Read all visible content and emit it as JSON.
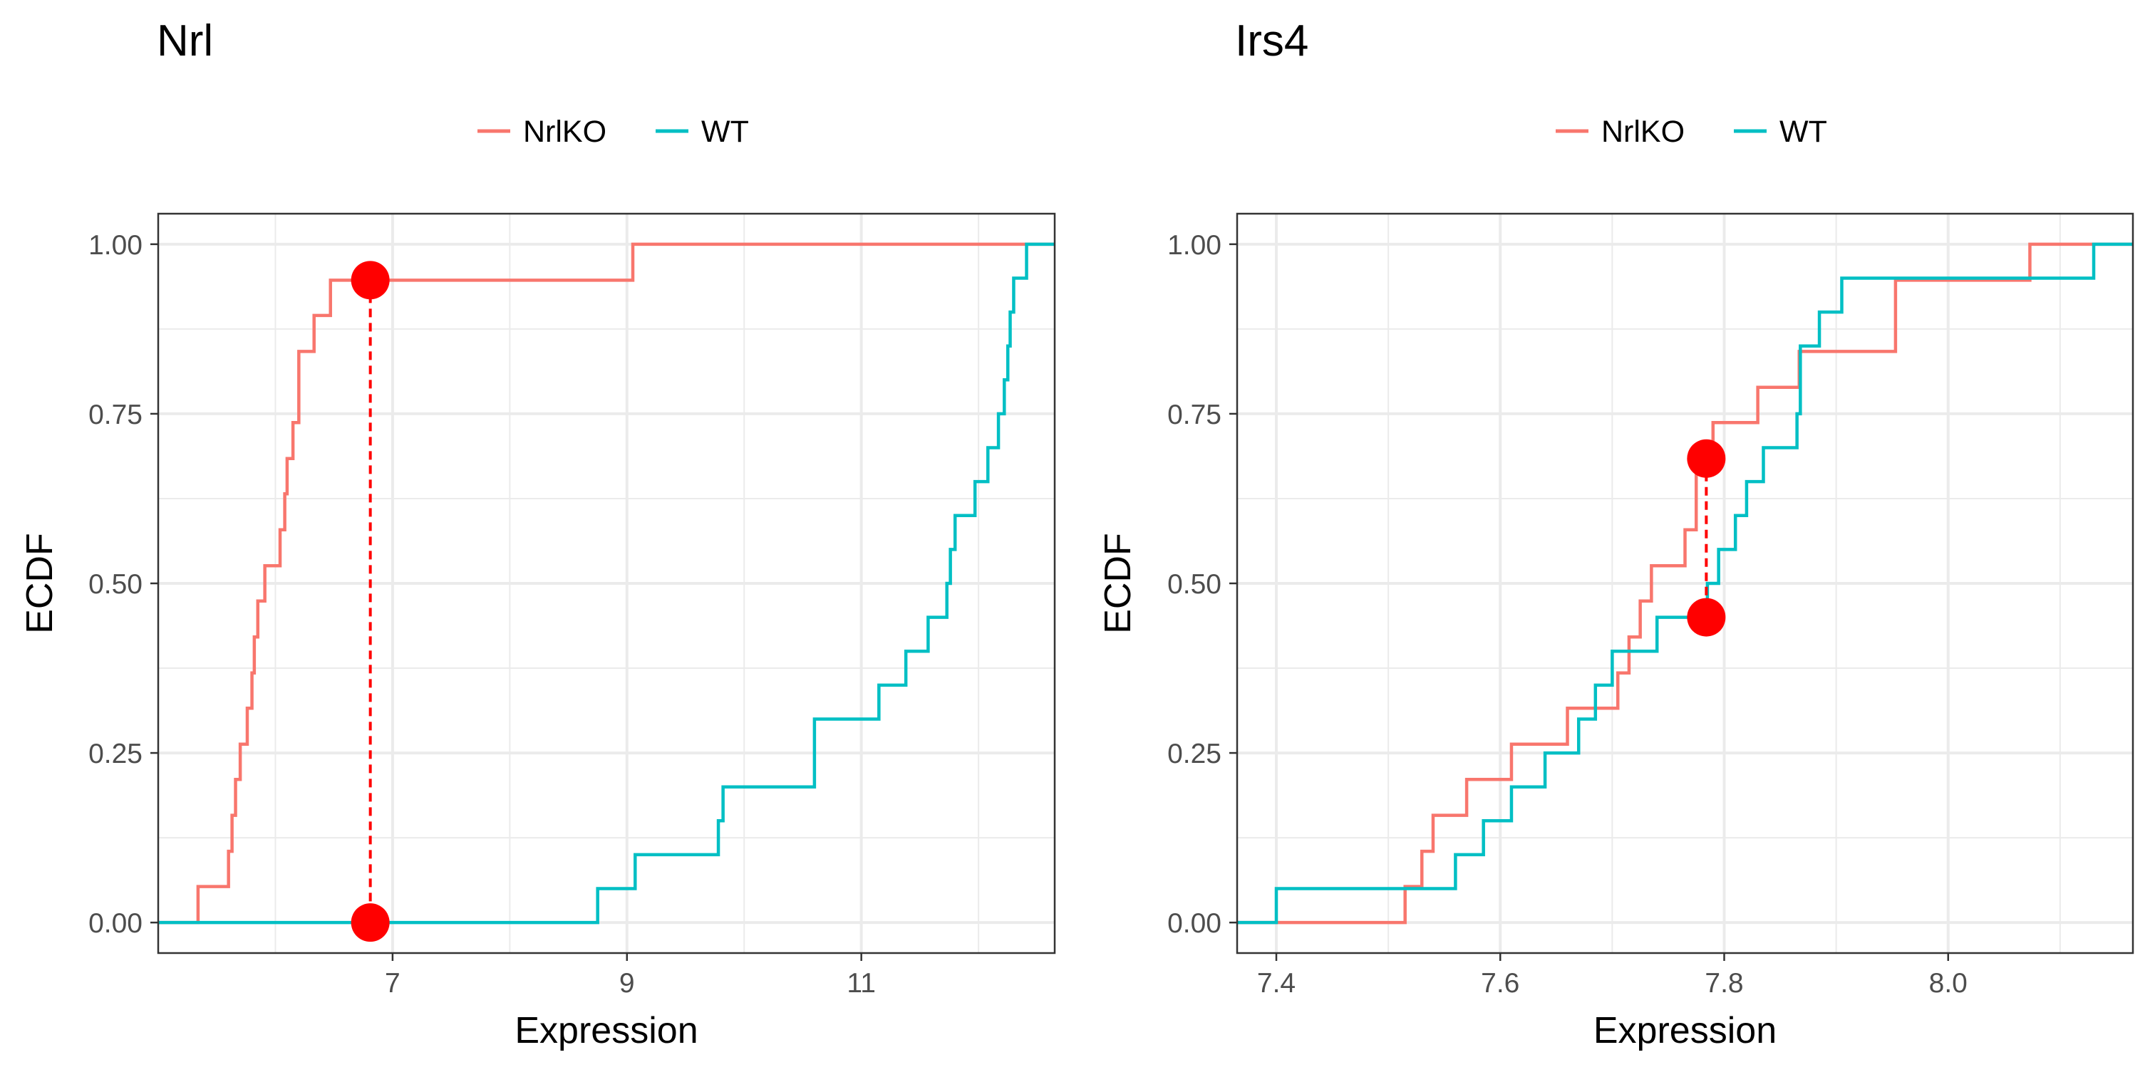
{
  "colors": {
    "NrlKO": "#F8766D",
    "WT": "#00BFC4",
    "marker": "#FF0000",
    "grid": "#EBEBEB",
    "panel_border": "#333333",
    "tick_text": "#4D4D4D",
    "title_text": "#000000"
  },
  "chart_data": [
    {
      "type": "line",
      "step": true,
      "title": "Nrl",
      "xlabel": "Expression",
      "ylabel": "ECDF",
      "xlim": [
        5.0,
        12.65
      ],
      "ylim": [
        -0.045,
        1.045
      ],
      "xticks": [
        7,
        9,
        11
      ],
      "xtick_labels": [
        "7",
        "9",
        "11"
      ],
      "yticks": [
        0,
        0.25,
        0.5,
        0.75,
        1.0
      ],
      "ytick_labels": [
        "0.00",
        "0.25",
        "0.50",
        "0.75",
        "1.00"
      ],
      "grid": true,
      "legend_position": "top",
      "series": [
        {
          "name": "NrlKO",
          "x": [
            5.34,
            5.6,
            5.63,
            5.66,
            5.7,
            5.76,
            5.8,
            5.82,
            5.85,
            5.91,
            6.04,
            6.08,
            6.1,
            6.15,
            6.2,
            6.33,
            6.47,
            9.05
          ],
          "y": [
            0.053,
            0.105,
            0.158,
            0.211,
            0.263,
            0.316,
            0.368,
            0.421,
            0.474,
            0.526,
            0.579,
            0.632,
            0.684,
            0.737,
            0.842,
            0.895,
            0.947,
            1.0
          ]
        },
        {
          "name": "WT",
          "x": [
            8.75,
            9.07,
            9.78,
            9.82,
            10.6,
            11.15,
            11.38,
            11.57,
            11.73,
            11.76,
            11.8,
            11.97,
            12.08,
            12.17,
            12.22,
            12.25,
            12.27,
            12.3,
            12.34,
            12.41
          ],
          "y": [
            0.05,
            0.1,
            0.15,
            0.2,
            0.3,
            0.35,
            0.4,
            0.45,
            0.5,
            0.55,
            0.6,
            0.65,
            0.7,
            0.75,
            0.8,
            0.85,
            0.9,
            0.95,
            0.95,
            1.0
          ]
        }
      ],
      "annotation": {
        "x": 6.81,
        "y_points": [
          0.947,
          0.0
        ],
        "line": "dashed"
      }
    },
    {
      "type": "line",
      "step": true,
      "title": "Irs4",
      "xlabel": "Expression",
      "ylabel": "ECDF",
      "xlim": [
        7.365,
        8.165
      ],
      "ylim": [
        -0.045,
        1.045
      ],
      "xticks": [
        7.4,
        7.6,
        7.8,
        8.0
      ],
      "xtick_labels": [
        "7.4",
        "7.6",
        "7.8",
        "8.0"
      ],
      "yticks": [
        0,
        0.25,
        0.5,
        0.75,
        1.0
      ],
      "ytick_labels": [
        "0.00",
        "0.25",
        "0.50",
        "0.75",
        "1.00"
      ],
      "grid": true,
      "legend_position": "top",
      "series": [
        {
          "name": "NrlKO",
          "x": [
            7.515,
            7.53,
            7.54,
            7.57,
            7.61,
            7.66,
            7.705,
            7.715,
            7.725,
            7.735,
            7.765,
            7.775,
            7.79,
            7.83,
            7.867,
            7.953,
            8.073
          ],
          "y": [
            0.053,
            0.105,
            0.158,
            0.211,
            0.263,
            0.316,
            0.368,
            0.421,
            0.474,
            0.526,
            0.579,
            0.684,
            0.737,
            0.789,
            0.842,
            0.947,
            1.0
          ]
        },
        {
          "name": "WT",
          "x": [
            7.4,
            7.56,
            7.585,
            7.61,
            7.64,
            7.67,
            7.685,
            7.7,
            7.74,
            7.785,
            7.795,
            7.81,
            7.82,
            7.835,
            7.865,
            7.868,
            7.885,
            7.905,
            8.13
          ],
          "y": [
            0.05,
            0.1,
            0.15,
            0.2,
            0.25,
            0.3,
            0.35,
            0.4,
            0.45,
            0.5,
            0.55,
            0.6,
            0.65,
            0.7,
            0.75,
            0.85,
            0.9,
            0.95,
            1.0
          ]
        }
      ],
      "annotation": {
        "x": 7.784,
        "y_points": [
          0.684,
          0.45
        ],
        "line": "dashed"
      }
    }
  ]
}
